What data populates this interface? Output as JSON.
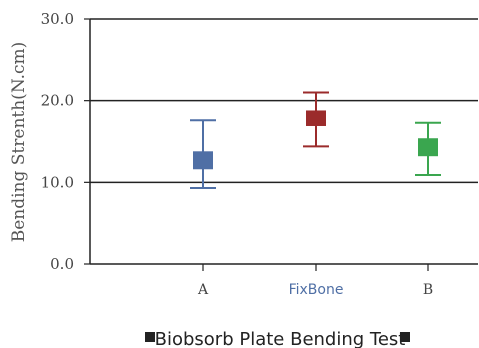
{
  "chart_data": {
    "type": "scatter",
    "subtype": "error-bar",
    "ylabel": "Bending Strenth(N.cm)",
    "ylim": [
      0,
      30
    ],
    "yticks": [
      0,
      10,
      20,
      30
    ],
    "ytick_labels": [
      "0.0",
      "10.0",
      "20.0",
      "30.0"
    ],
    "grid": "horizontal lines at 20.0 and 10.0",
    "categories": [
      "A",
      "FixBone",
      "B"
    ],
    "series": [
      {
        "category": "A",
        "mean": 12.7,
        "lower": 9.3,
        "upper": 17.6,
        "box_low": 11.6,
        "box_high": 13.8,
        "color": "#4f6fa5"
      },
      {
        "category": "FixBone",
        "mean": 17.8,
        "lower": 14.4,
        "upper": 21.0,
        "box_low": 16.9,
        "box_high": 18.8,
        "color": "#9b2b2b"
      },
      {
        "category": "B",
        "mean": 14.3,
        "lower": 10.9,
        "upper": 17.3,
        "box_low": 13.2,
        "box_high": 15.4,
        "color": "#3aa64f"
      }
    ],
    "category_label_colors": [
      "#444444",
      "#4f6fa5",
      "#444444"
    ],
    "caption": "Biobsorb Plate Bending Test",
    "legend_marker_color": "#222222"
  }
}
